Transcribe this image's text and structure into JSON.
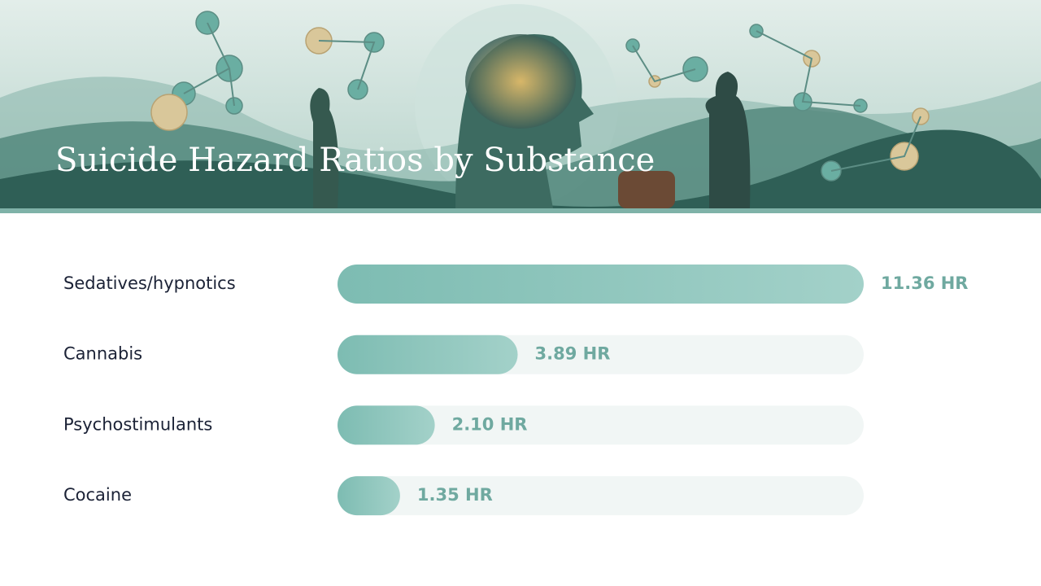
{
  "chart_data": {
    "type": "hbar",
    "title": "Suicide Hazard Ratios by Substance",
    "categories": [
      "Sedatives/hypnotics",
      "Cannabis",
      "Psychostimulants",
      "Cocaine"
    ],
    "values": [
      11.36,
      3.89,
      2.1,
      1.35
    ],
    "value_labels": [
      "11.36 HR",
      "3.89 HR",
      "2.10 HR",
      "1.35 HR"
    ],
    "color": "#7dbcb2",
    "xlim": [
      0,
      11.36
    ]
  }
}
